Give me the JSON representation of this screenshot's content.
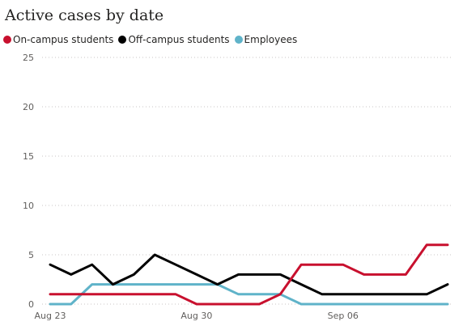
{
  "chart_data": {
    "type": "line",
    "title": "Active cases by date",
    "xlabel": "",
    "ylabel": "",
    "ylim": [
      0,
      25
    ],
    "yticks": [
      0,
      5,
      10,
      15,
      20,
      25
    ],
    "x": [
      "Aug 23",
      "Aug 24",
      "Aug 25",
      "Aug 26",
      "Aug 27",
      "Aug 28",
      "Aug 29",
      "Aug 30",
      "Aug 31",
      "Sep 01",
      "Sep 02",
      "Sep 03",
      "Sep 04",
      "Sep 05",
      "Sep 06",
      "Sep 07",
      "Sep 08",
      "Sep 09",
      "Sep 10",
      "Sep 11"
    ],
    "xticks": [
      "Aug 23",
      "Aug 30",
      "Sep 06"
    ],
    "grid": true,
    "legend": "top-left",
    "series": [
      {
        "name": "On-campus students",
        "color": "#c8102e",
        "values": [
          1,
          1,
          1,
          1,
          1,
          1,
          1,
          0,
          0,
          0,
          0,
          1,
          4,
          4,
          4,
          3,
          3,
          3,
          6,
          6
        ]
      },
      {
        "name": "Off-campus students",
        "color": "#000000",
        "values": [
          4,
          3,
          4,
          2,
          3,
          5,
          4,
          3,
          2,
          3,
          3,
          3,
          2,
          1,
          1,
          1,
          1,
          1,
          1,
          2
        ]
      },
      {
        "name": "Employees",
        "color": "#5fb3c9",
        "values": [
          0,
          0,
          2,
          2,
          2,
          2,
          2,
          2,
          2,
          1,
          1,
          1,
          0,
          0,
          0,
          0,
          0,
          0,
          0,
          0
        ]
      }
    ]
  }
}
